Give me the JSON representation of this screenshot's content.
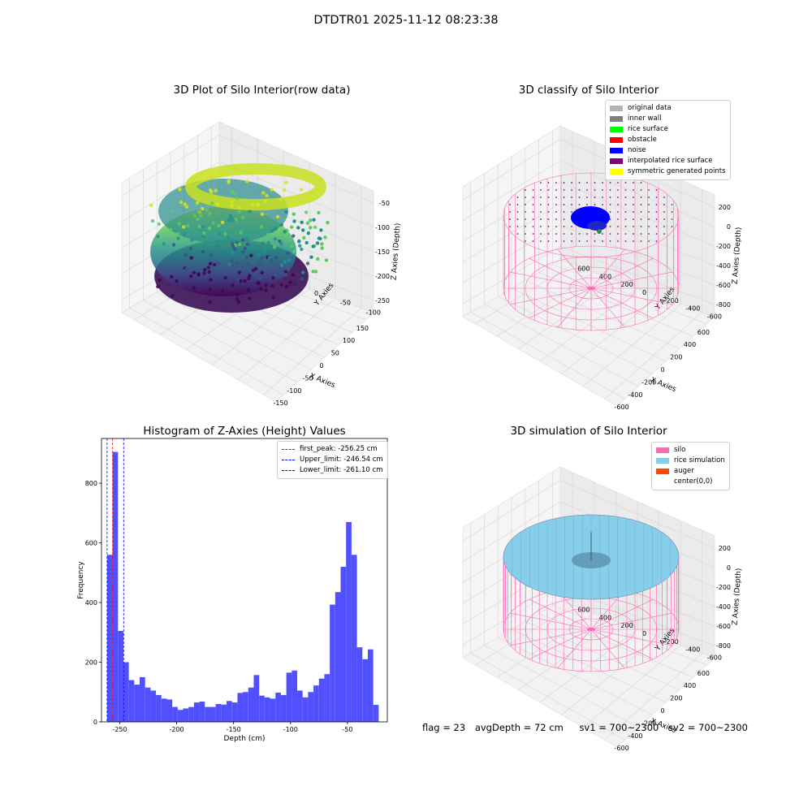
{
  "figure": {
    "title": "DTDTR01 2025-11-12 08:23:38",
    "footer": {
      "flag": "flag = 23",
      "avg_depth": "avgDepth = 72 cm",
      "sv1": "sv1 = 700~2300",
      "sv2": "sv2 = 700~2300"
    }
  },
  "chart_data": [
    {
      "type": "scatter",
      "title": "3D Plot of Silo Interior(row data)",
      "xlabel": "X Axies",
      "ylabel": "Y Axies",
      "zlabel": "Z Axies (Depth)",
      "xticks": [
        "-150",
        "-100",
        "-50",
        "0",
        "50",
        "100",
        "150"
      ],
      "yticks": [
        "-100",
        "-50",
        "0",
        "50",
        "100",
        "150"
      ],
      "zticks": [
        "-50",
        "-100",
        "-150",
        "-200",
        "-250"
      ],
      "colormap": "viridis"
    },
    {
      "type": "scatter",
      "title": "3D classify of Silo Interior",
      "xlabel": "X Axies",
      "ylabel": "Y Axies",
      "zlabel": "Z Axies (Depth)",
      "xticks": [
        "-600",
        "-400",
        "-200",
        "0",
        "200",
        "400",
        "600"
      ],
      "yticks": [
        "-600",
        "-400",
        "-200",
        "0",
        "200",
        "400",
        "600"
      ],
      "zticks": [
        "200",
        "0",
        "-200",
        "-400",
        "-600",
        "-800"
      ],
      "legend": [
        {
          "label": "original data",
          "color": "#b4b4b4"
        },
        {
          "label": "inner wall",
          "color": "#808080"
        },
        {
          "label": "rice surface",
          "color": "#00ff00"
        },
        {
          "label": "obstacle",
          "color": "#ff0000"
        },
        {
          "label": "noise",
          "color": "#0000ff"
        },
        {
          "label": "interpolated rice surface",
          "color": "#800080"
        },
        {
          "label": "symmetric generated points",
          "color": "#ffff00"
        }
      ]
    },
    {
      "type": "bar",
      "title": "Histogram of Z-Axies (Height) Values",
      "xlabel": "Depth (cm)",
      "ylabel": "Frequency",
      "xlim": [
        -266,
        -15
      ],
      "ylim": [
        0,
        950
      ],
      "xticks": [
        -250,
        -200,
        -150,
        -100,
        -50
      ],
      "yticks": [
        0,
        200,
        400,
        600,
        800
      ],
      "bin_start": -261.1,
      "bin_width": 4.77,
      "values": [
        560,
        905,
        305,
        200,
        140,
        125,
        150,
        115,
        105,
        90,
        78,
        75,
        50,
        40,
        45,
        50,
        65,
        68,
        50,
        50,
        60,
        58,
        70,
        65,
        97,
        100,
        115,
        157,
        88,
        82,
        78,
        98,
        90,
        165,
        172,
        105,
        82,
        100,
        122,
        145,
        160,
        393,
        435,
        520,
        670,
        560,
        250,
        210,
        243,
        57
      ],
      "bar_color": "#5050ff",
      "lines": [
        {
          "label": "first_peak: -256.25 cm",
          "x": -256.25,
          "color": "#ff0000"
        },
        {
          "label": "Upper_limit: -246.54 cm",
          "x": -246.54,
          "color": "#0000ff"
        },
        {
          "label": "Lower_limit: -261.10 cm",
          "x": -261.1,
          "color": "#0000ff"
        }
      ]
    },
    {
      "type": "scatter",
      "title": "3D simulation of Silo Interior",
      "xlabel": "X Axies",
      "ylabel": "Y Axies",
      "zlabel": "Z Axies (Depth)",
      "xticks": [
        "-600",
        "-400",
        "-200",
        "0",
        "200",
        "400",
        "600"
      ],
      "yticks": [
        "-600",
        "-400",
        "-200",
        "0",
        "200",
        "400",
        "600"
      ],
      "zticks": [
        "200",
        "0",
        "-200",
        "-400",
        "-600",
        "-800"
      ],
      "legend": [
        {
          "label": "silo",
          "color": "#ff69b4"
        },
        {
          "label": "rice simulation",
          "color": "#87ceeb"
        },
        {
          "label": "auger",
          "color": "#ff4500"
        },
        {
          "label": "center(0,0)",
          "color": "#ffffff"
        }
      ]
    }
  ]
}
